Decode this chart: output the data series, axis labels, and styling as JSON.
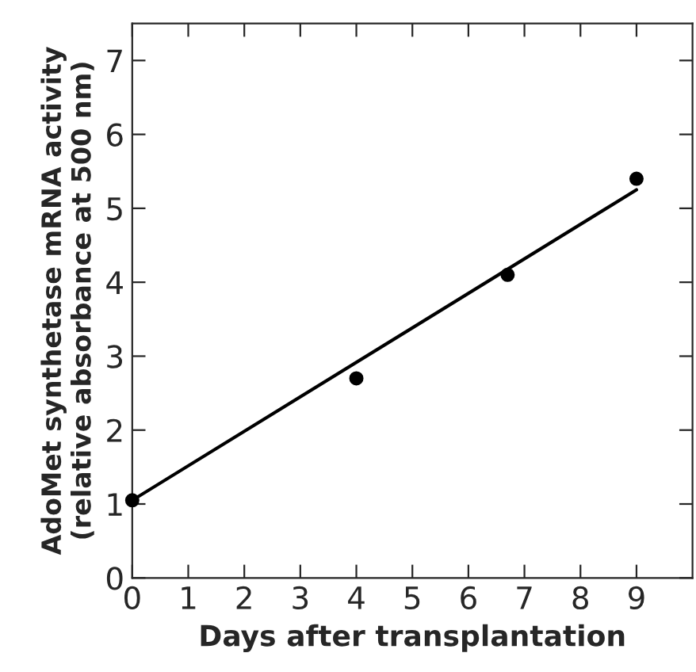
{
  "chart_data": {
    "type": "scatter",
    "xlabel": "Days after transplantation",
    "ylabel": "AdoMet synthetase mRNA activity\n(relative absorbance at 500 nm)",
    "series": [
      {
        "color": "#000000",
        "x": [
          0,
          4,
          6.7,
          9
        ],
        "values": [
          1.05,
          2.7,
          4.1,
          5.4
        ],
        "marker": "circle"
      },
      {
        "type": "line",
        "color": "#000000",
        "x": [
          0,
          9
        ],
        "values": [
          1.05,
          5.25
        ],
        "marker": "none",
        "line_style": "solid"
      }
    ],
    "xlim": [
      0,
      10
    ],
    "ylim": [
      0,
      7.5
    ],
    "xticks": [
      0,
      1,
      2,
      3,
      4,
      5,
      6,
      7,
      8,
      9
    ],
    "yticks": [
      0,
      1,
      2,
      3,
      4,
      5,
      6,
      7
    ],
    "grid": false,
    "legend": false
  }
}
